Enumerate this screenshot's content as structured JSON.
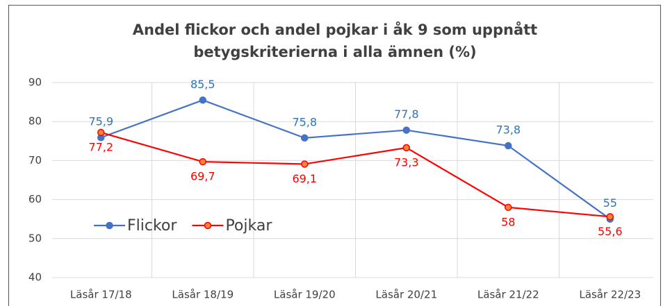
{
  "chart_data": {
    "type": "line",
    "title": [
      "Andel flickor och andel pojkar i åk 9 som uppnått",
      "betygskriterierna i alla ämnen (%)"
    ],
    "categories": [
      "Läsår 17/18",
      "Läsår 18/19",
      "Läsår 19/20",
      "Läsår 20/21",
      "Läsår 21/22",
      "Läsår 22/23"
    ],
    "series": [
      {
        "name": "Flickor",
        "color": "#4472c4",
        "label_color": "#2e75b6",
        "marker_fill": "#4472c4",
        "label_side": "above",
        "values": [
          75.9,
          85.5,
          75.8,
          77.8,
          73.8,
          55
        ],
        "value_labels": [
          "75,9",
          "85,5",
          "75,8",
          "77,8",
          "73,8",
          "55"
        ]
      },
      {
        "name": "Pojkar",
        "color": "#ff0000",
        "label_color": "#ff0000",
        "marker_fill": "#f4813a",
        "label_side": "below",
        "values": [
          77.2,
          69.7,
          69.1,
          73.3,
          58,
          55.6
        ],
        "value_labels": [
          "77,2",
          "69,7",
          "69,1",
          "73,3",
          "58",
          "55,6"
        ]
      }
    ],
    "ylim": [
      40,
      90
    ],
    "yticks": [
      40,
      50,
      60,
      70,
      80,
      90
    ],
    "grid": true,
    "legend": "left"
  }
}
